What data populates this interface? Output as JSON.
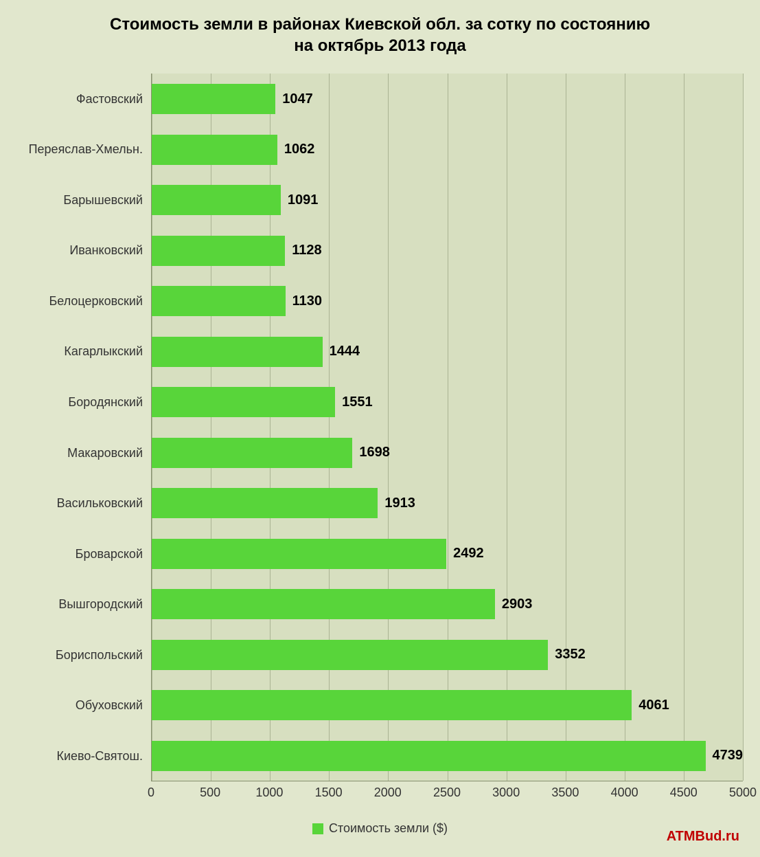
{
  "chart": {
    "type": "bar",
    "orientation": "horizontal",
    "title_line1": "Стоимость земли в районах Киевской обл. за сотку по состоянию",
    "title_line2": "на октябрь 2013 года",
    "title_fontsize": 24,
    "title_color": "#000000",
    "background_color": "#e1e7cd",
    "plot_background_color": "#d7dfc0",
    "grid_color": "#aab393",
    "axis_line_color": "#88916f",
    "bar_color": "#58d53a",
    "label_color": "#333333",
    "axis_label_fontsize": 18,
    "value_label_fontsize": 20,
    "value_label_color": "#000000",
    "legend_label": "Стоимость земли ($)",
    "legend_fontsize": 18,
    "watermark": "ATMBud.ru",
    "watermark_color": "#c00000",
    "watermark_fontsize": 20,
    "xlim": [
      0,
      5000
    ],
    "xtick_step": 500,
    "xticks": [
      0,
      500,
      1000,
      1500,
      2000,
      2500,
      3000,
      3500,
      4000,
      4500,
      5000
    ],
    "bar_width_ratio": 0.62,
    "categories": [
      "Фастовский",
      "Переяслав-Хмельн.",
      "Барышевский",
      "Иванковский",
      "Белоцерковский",
      "Кагарлыкский",
      "Бородянский",
      "Макаровский",
      "Васильковский",
      "Броварской",
      "Вышгородский",
      "Бориспольский",
      "Обуховский",
      "Киево-Святош."
    ],
    "values": [
      1047,
      1062,
      1091,
      1128,
      1130,
      1444,
      1551,
      1698,
      1913,
      2492,
      2903,
      3352,
      4061,
      4739
    ]
  }
}
